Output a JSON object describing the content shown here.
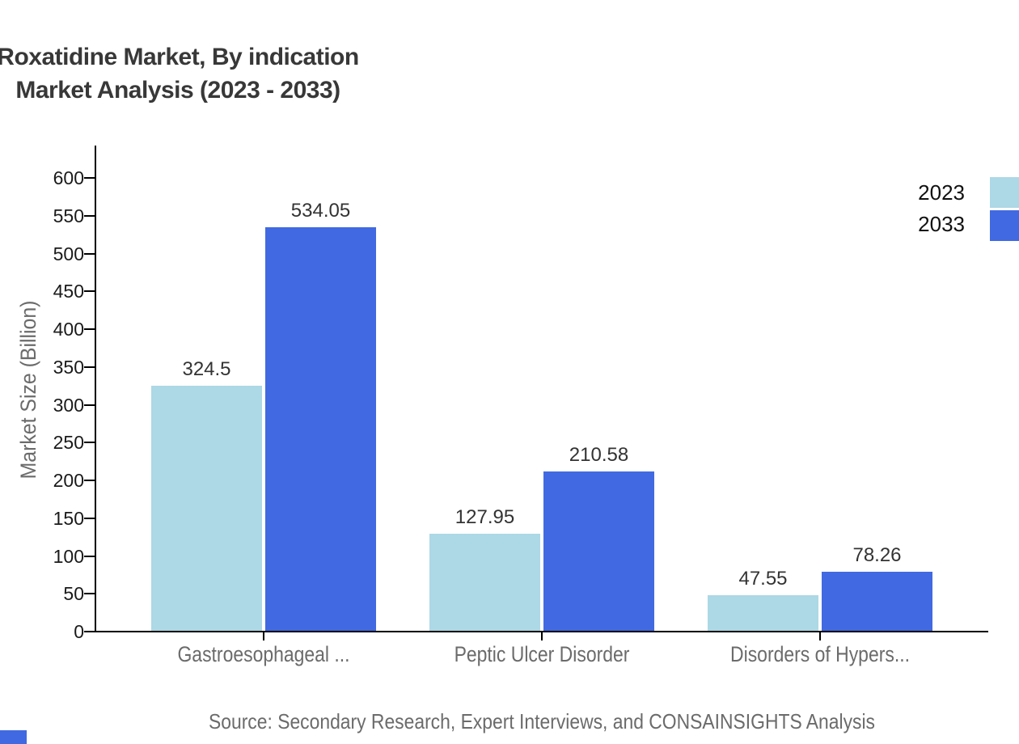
{
  "title": {
    "line1": "Roxatidine Market, By indication",
    "line2": "Market Analysis (2023 - 2033)"
  },
  "y_axis": {
    "label": "Market Size (Billion)"
  },
  "legend": [
    {
      "label": "2023",
      "color": "#ADD8E6"
    },
    {
      "label": "2033",
      "color": "#4169E1"
    }
  ],
  "source": "Source: Secondary Research, Expert Interviews, and CONSAINSIGHTS Analysis",
  "accent_color": "#4169E1",
  "chart_data": {
    "type": "bar",
    "title": "Roxatidine Market, By indication Market Analysis (2023 - 2033)",
    "categories": [
      "Gastroesophageal ...",
      "Peptic Ulcer Disorder",
      "Disorders of Hypers..."
    ],
    "series": [
      {
        "name": "2023",
        "color": "#ADD8E6",
        "values": [
          324.5,
          127.95,
          47.55
        ]
      },
      {
        "name": "2033",
        "color": "#4169E1",
        "values": [
          534.05,
          210.58,
          78.26
        ]
      }
    ],
    "value_labels": [
      [
        "324.5",
        "127.95",
        "47.55"
      ],
      [
        "534.05",
        "210.58",
        "78.26"
      ]
    ],
    "xlabel": "",
    "ylabel": "Market Size (Billion)",
    "ylim": [
      0,
      650
    ],
    "yticks": [
      0,
      50,
      100,
      150,
      200,
      250,
      300,
      350,
      400,
      450,
      500,
      550,
      600
    ],
    "grid": false,
    "legend_position": "top-right"
  }
}
